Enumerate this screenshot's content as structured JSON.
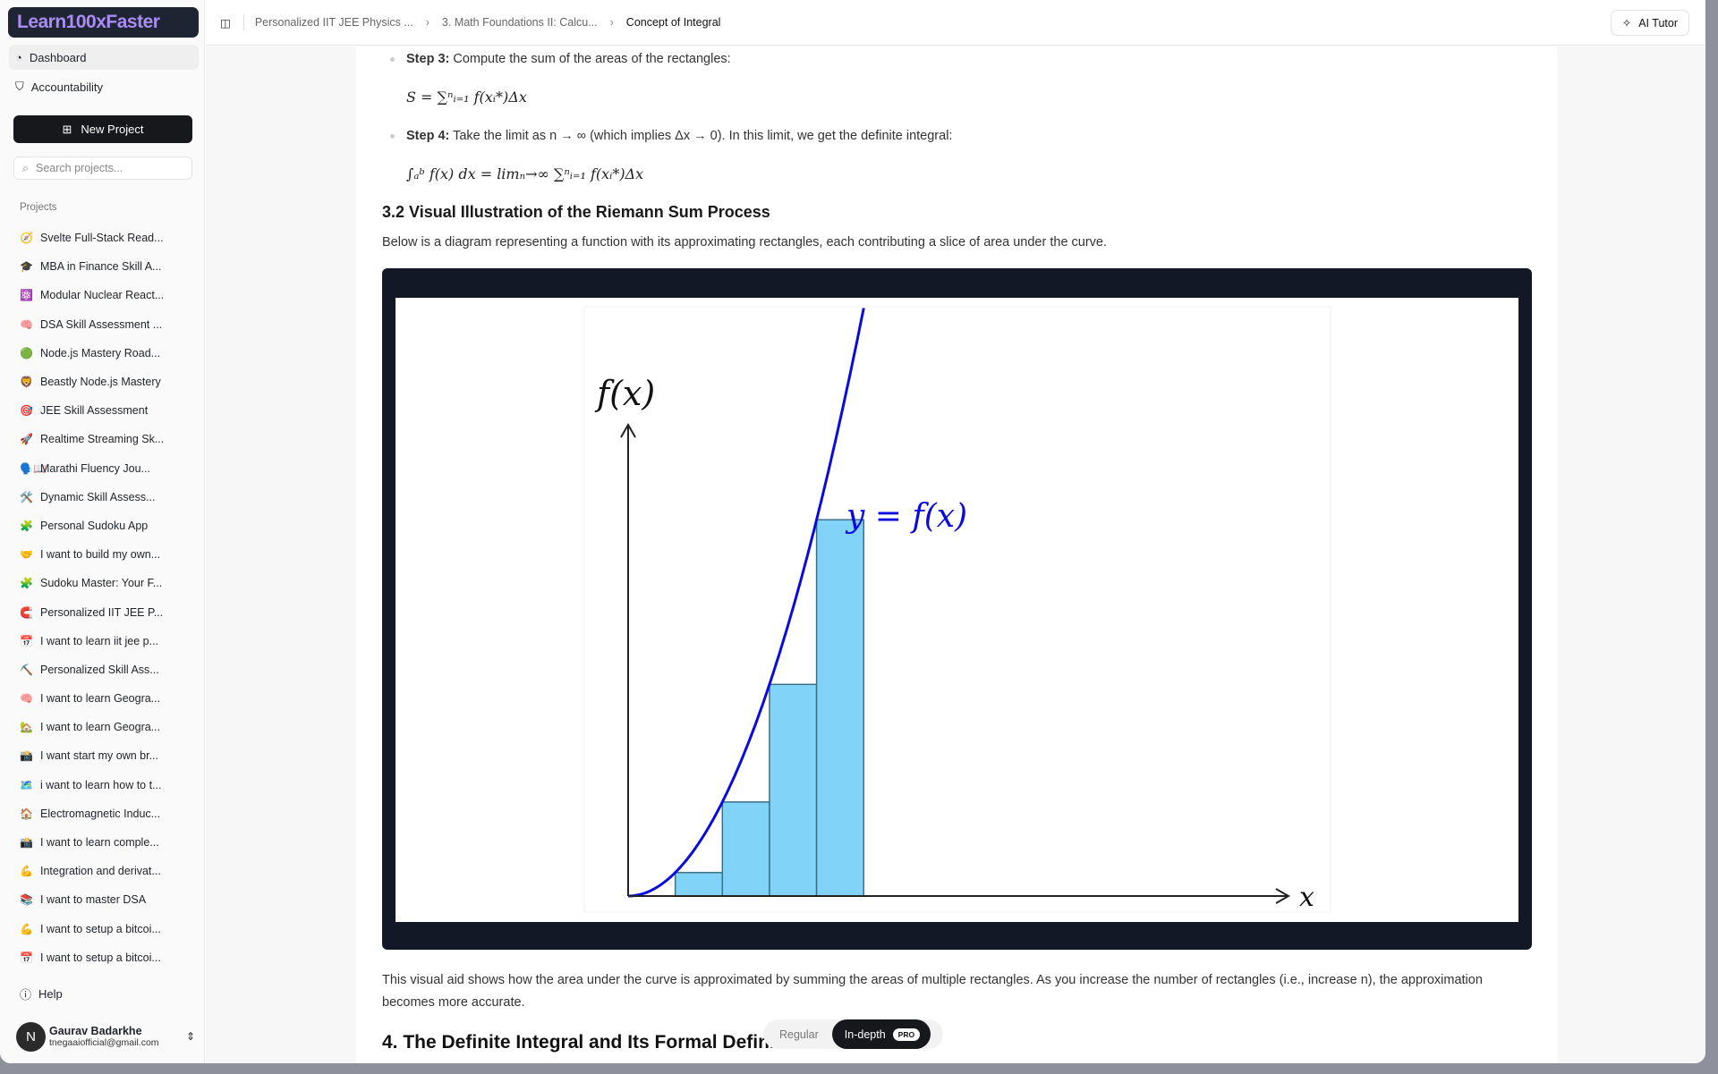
{
  "app": {
    "logo": "Learn100xFaster"
  },
  "sidebar": {
    "nav": [
      {
        "label": "Dashboard",
        "icon": "dashboard-icon"
      },
      {
        "label": "Accountability",
        "icon": "handshake-icon"
      }
    ],
    "new_project": "New Project",
    "search_placeholder": "Search projects...",
    "projects_label": "Projects",
    "projects": [
      {
        "icon": "🧭",
        "label": "Svelte Full-Stack Read..."
      },
      {
        "icon": "🎓",
        "label": "MBA in Finance Skill A..."
      },
      {
        "icon": "⚛️",
        "label": "Modular Nuclear React..."
      },
      {
        "icon": "🧠",
        "label": "DSA Skill Assessment ..."
      },
      {
        "icon": "🟢",
        "label": "Node.js Mastery Road..."
      },
      {
        "icon": "🦁",
        "label": "Beastly Node.js Mastery"
      },
      {
        "icon": "🎯",
        "label": "JEE Skill Assessment"
      },
      {
        "icon": "🚀",
        "label": "Realtime Streaming Sk..."
      },
      {
        "icon": "🗣️📖",
        "label": "Marathi Fluency Jou..."
      },
      {
        "icon": "🛠️",
        "label": "Dynamic Skill Assess..."
      },
      {
        "icon": "🧩",
        "label": "Personal Sudoku App"
      },
      {
        "icon": "🤝",
        "label": "I want to build my own..."
      },
      {
        "icon": "🧩",
        "label": "Sudoku Master: Your F..."
      },
      {
        "icon": "🧲",
        "label": "Personalized IIT JEE P..."
      },
      {
        "icon": "📅",
        "label": "I want to learn iit jee p..."
      },
      {
        "icon": "⛏️",
        "label": "Personalized Skill Ass..."
      },
      {
        "icon": "🧠",
        "label": "I want to learn Geogra..."
      },
      {
        "icon": "🏡",
        "label": "I want to learn Geogra..."
      },
      {
        "icon": "📸",
        "label": "I want start my own br..."
      },
      {
        "icon": "🗺️",
        "label": "i want to learn how to t..."
      },
      {
        "icon": "🏠",
        "label": "Electromagnetic Induc..."
      },
      {
        "icon": "📸",
        "label": "I want to learn comple..."
      },
      {
        "icon": "💪",
        "label": "Integration and derivat..."
      },
      {
        "icon": "📚",
        "label": "I want to master DSA"
      },
      {
        "icon": "💪",
        "label": "I want to setup a bitcoi..."
      },
      {
        "icon": "📅",
        "label": "I want to setup a bitcoi..."
      }
    ],
    "help": "Help",
    "user": {
      "initial": "N",
      "name": "Gaurav Badarkhe",
      "email": "tnegaaiofficial@gmail.com"
    }
  },
  "header": {
    "breadcrumb": [
      "Personalized IIT JEE Physics ...",
      "3. Math Foundations II: Calcu...",
      "Concept of Integral"
    ],
    "ai_tutor": "AI Tutor"
  },
  "content": {
    "step3_label": "Step 3:",
    "step3_text": " Compute the sum of the areas of the rectangles:",
    "step3_math": "S = ∑ⁿᵢ₌₁ f(xᵢ*)Δx",
    "step4_label": "Step 4:",
    "step4_text": " Take the limit as n → ∞ (which implies Δx → 0). In this limit, we get the definite integral:",
    "step4_math": "∫ₐᵇ f(x) dx = limₙ→∞ ∑ⁿᵢ₌₁ f(xᵢ*)Δx",
    "section_heading": "3.2 Visual Illustration of the Riemann Sum Process",
    "section_intro": "Below is a diagram representing a function with its approximating rectangles, each contributing a slice of area under the curve.",
    "after_text": "This visual aid shows how the area under the curve is approximated by summing the areas of multiple rectangles. As you increase the number of rectangles (i.e., increase n), the approximation becomes more accurate.",
    "next_heading": "4. The Definite Integral and Its Formal Definit"
  },
  "diagram": {
    "y_label": "f(x)",
    "x_label": "x",
    "curve_label": "y = f(x)",
    "curve_color": "#0a0ae0",
    "rect_fill": "#81d4f7",
    "rect_stroke": "#3d6f86",
    "curve": "f(x) = x^2",
    "x_range": [
      0,
      5
    ],
    "rectangles": [
      {
        "x0": 1,
        "x1": 2,
        "height": 1
      },
      {
        "x0": 2,
        "x1": 3,
        "height": 4
      },
      {
        "x0": 3,
        "x1": 4,
        "height": 9
      },
      {
        "x0": 4,
        "x1": 5,
        "height": 16
      }
    ]
  },
  "mode_toggle": {
    "regular": "Regular",
    "in_depth": "In-depth",
    "badge": "PRO",
    "selected": "In-depth"
  }
}
